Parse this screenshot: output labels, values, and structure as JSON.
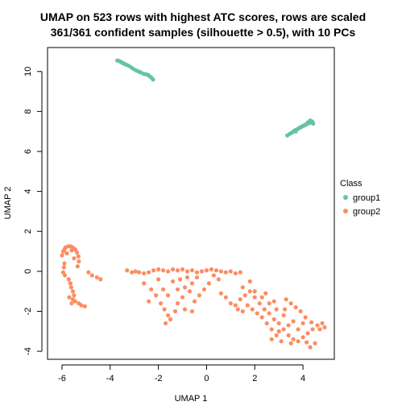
{
  "chart_data": {
    "type": "scatter",
    "title_line1": "UMAP on 523 rows with highest ATC scores, rows are scaled",
    "title_line2": "361/361 confident samples (silhouette > 0.5), with 10 PCs",
    "xlabel": "UMAP 1",
    "ylabel": "UMAP 2",
    "xlim": [
      -6.6,
      5.3
    ],
    "ylim": [
      -4.4,
      11.2
    ],
    "xticks": [
      -6,
      -4,
      -2,
      0,
      2,
      4
    ],
    "yticks": [
      -4,
      -2,
      0,
      2,
      4,
      6,
      8,
      10
    ],
    "grid": false,
    "legend": {
      "title": "Class",
      "position": "right",
      "entries": [
        "group1",
        "group2"
      ]
    },
    "colors": {
      "group1": "#66C2A5",
      "group2": "#FC8D62"
    },
    "series": [
      {
        "name": "group1",
        "color": "#66C2A5",
        "points": [
          [
            -3.7,
            10.55
          ],
          [
            -3.62,
            10.52
          ],
          [
            -3.55,
            10.48
          ],
          [
            -3.48,
            10.42
          ],
          [
            -3.4,
            10.38
          ],
          [
            -3.32,
            10.33
          ],
          [
            -3.22,
            10.28
          ],
          [
            -3.12,
            10.2
          ],
          [
            -3.02,
            10.12
          ],
          [
            -2.92,
            10.05
          ],
          [
            -2.82,
            10.0
          ],
          [
            -2.72,
            9.95
          ],
          [
            -2.6,
            9.88
          ],
          [
            -2.5,
            9.86
          ],
          [
            -2.42,
            9.82
          ],
          [
            -2.35,
            9.75
          ],
          [
            -2.28,
            9.68
          ],
          [
            -2.22,
            9.6
          ],
          [
            3.35,
            6.8
          ],
          [
            3.45,
            6.88
          ],
          [
            3.55,
            6.95
          ],
          [
            3.62,
            7.02
          ],
          [
            3.7,
            7.08
          ],
          [
            3.78,
            7.12
          ],
          [
            3.85,
            7.18
          ],
          [
            3.92,
            7.22
          ],
          [
            4.0,
            7.28
          ],
          [
            4.05,
            7.3
          ],
          [
            4.12,
            7.35
          ],
          [
            4.18,
            7.38
          ],
          [
            4.25,
            7.42
          ],
          [
            4.32,
            7.45
          ],
          [
            4.38,
            7.5
          ],
          [
            4.42,
            7.4
          ],
          [
            4.3,
            7.55
          ],
          [
            4.2,
            7.45
          ],
          [
            3.7,
            7.0
          ]
        ]
      },
      {
        "name": "group2",
        "color": "#FC8D62",
        "points": [
          [
            -6.0,
            0.8
          ],
          [
            -5.95,
            1.0
          ],
          [
            -5.9,
            1.1
          ],
          [
            -5.85,
            1.2
          ],
          [
            -5.75,
            1.25
          ],
          [
            -5.65,
            1.25
          ],
          [
            -5.55,
            1.2
          ],
          [
            -5.45,
            1.1
          ],
          [
            -5.38,
            0.95
          ],
          [
            -5.32,
            0.75
          ],
          [
            -5.3,
            0.5
          ],
          [
            -5.35,
            0.25
          ],
          [
            -5.9,
            0.4
          ],
          [
            -5.92,
            0.2
          ],
          [
            -5.95,
            -0.05
          ],
          [
            -5.88,
            -0.2
          ],
          [
            -5.72,
            -0.4
          ],
          [
            -5.62,
            -0.8
          ],
          [
            -5.55,
            -1.0
          ],
          [
            -5.5,
            -1.2
          ],
          [
            -5.55,
            -1.4
          ],
          [
            -5.6,
            -1.6
          ],
          [
            -5.45,
            -1.5
          ],
          [
            -5.3,
            -1.6
          ],
          [
            -5.2,
            -1.7
          ],
          [
            -5.05,
            -1.75
          ],
          [
            -5.7,
            -1.3
          ],
          [
            -5.65,
            -0.6
          ],
          [
            -4.9,
            -0.05
          ],
          [
            -4.75,
            -0.2
          ],
          [
            -4.55,
            -0.3
          ],
          [
            -4.4,
            -0.4
          ],
          [
            -5.8,
            0.9
          ],
          [
            -5.6,
            1.05
          ],
          [
            -5.5,
            0.65
          ],
          [
            -3.3,
            0.05
          ],
          [
            -3.1,
            -0.05
          ],
          [
            -2.95,
            0.0
          ],
          [
            -2.8,
            -0.05
          ],
          [
            -2.6,
            -0.1
          ],
          [
            -2.4,
            -0.05
          ],
          [
            -2.2,
            0.05
          ],
          [
            -2.0,
            0.1
          ],
          [
            -1.8,
            0.05
          ],
          [
            -1.6,
            0.0
          ],
          [
            -1.4,
            0.1
          ],
          [
            -1.2,
            0.05
          ],
          [
            -1.0,
            0.1
          ],
          [
            -0.8,
            0.0
          ],
          [
            -0.6,
            0.05
          ],
          [
            -0.4,
            -0.05
          ],
          [
            -0.2,
            0.0
          ],
          [
            0.0,
            0.05
          ],
          [
            0.2,
            0.1
          ],
          [
            0.4,
            0.05
          ],
          [
            0.6,
            0.0
          ],
          [
            0.8,
            -0.05
          ],
          [
            1.0,
            0.0
          ],
          [
            1.2,
            -0.1
          ],
          [
            1.4,
            -0.05
          ],
          [
            -2.6,
            -0.6
          ],
          [
            -2.3,
            -0.9
          ],
          [
            -2.1,
            -1.2
          ],
          [
            -1.9,
            -1.6
          ],
          [
            -1.75,
            -1.9
          ],
          [
            -1.6,
            -2.2
          ],
          [
            -1.5,
            -2.4
          ],
          [
            -1.7,
            -2.6
          ],
          [
            -1.3,
            -2.0
          ],
          [
            -1.2,
            -1.6
          ],
          [
            -1.0,
            -1.3
          ],
          [
            -0.9,
            -0.8
          ],
          [
            -0.7,
            -1.0
          ],
          [
            -0.5,
            -1.5
          ],
          [
            -0.3,
            -1.2
          ],
          [
            -0.1,
            -0.9
          ],
          [
            0.1,
            -0.6
          ],
          [
            -1.4,
            -0.5
          ],
          [
            -1.1,
            -0.4
          ],
          [
            -0.8,
            -0.3
          ],
          [
            -2.0,
            -0.4
          ],
          [
            -0.6,
            -0.6
          ],
          [
            -0.4,
            -0.3
          ],
          [
            -1.6,
            -1.2
          ],
          [
            -1.2,
            -0.9
          ],
          [
            -0.9,
            -1.9
          ],
          [
            -0.6,
            -2.0
          ],
          [
            0.3,
            -0.2
          ],
          [
            0.5,
            -0.4
          ],
          [
            -2.4,
            -1.5
          ],
          [
            -1.8,
            -0.9
          ],
          [
            0.6,
            -1.1
          ],
          [
            0.8,
            -1.3
          ],
          [
            1.0,
            -1.6
          ],
          [
            1.2,
            -1.7
          ],
          [
            1.4,
            -1.4
          ],
          [
            1.6,
            -1.2
          ],
          [
            1.8,
            -1.0
          ],
          [
            2.0,
            -1.3
          ],
          [
            2.2,
            -1.6
          ],
          [
            2.4,
            -1.9
          ],
          [
            2.6,
            -2.1
          ],
          [
            2.8,
            -2.4
          ],
          [
            3.0,
            -2.6
          ],
          [
            3.2,
            -2.9
          ],
          [
            3.4,
            -3.2
          ],
          [
            3.6,
            -3.4
          ],
          [
            3.8,
            -3.5
          ],
          [
            4.0,
            -3.3
          ],
          [
            4.2,
            -3.1
          ],
          [
            4.4,
            -2.9
          ],
          [
            4.6,
            -2.7
          ],
          [
            4.8,
            -2.6
          ],
          [
            4.9,
            -2.8
          ],
          [
            4.5,
            -3.6
          ],
          [
            4.3,
            -3.8
          ],
          [
            3.1,
            -3.5
          ],
          [
            2.9,
            -3.2
          ],
          [
            2.7,
            -2.9
          ],
          [
            2.5,
            -2.6
          ],
          [
            2.3,
            -2.3
          ],
          [
            2.1,
            -2.1
          ],
          [
            1.9,
            -1.9
          ],
          [
            1.7,
            -1.7
          ],
          [
            1.5,
            -2.0
          ],
          [
            1.3,
            -1.9
          ],
          [
            3.3,
            -1.4
          ],
          [
            3.5,
            -1.6
          ],
          [
            3.7,
            -1.8
          ],
          [
            3.9,
            -2.0
          ],
          [
            4.1,
            -2.3
          ],
          [
            3.6,
            -2.5
          ],
          [
            3.2,
            -2.2
          ],
          [
            2.9,
            -1.9
          ],
          [
            2.6,
            -1.6
          ],
          [
            2.3,
            -1.3
          ],
          [
            2.0,
            -1.0
          ],
          [
            1.5,
            -0.8
          ],
          [
            1.8,
            -0.5
          ],
          [
            3.4,
            -2.7
          ],
          [
            3.8,
            -2.9
          ],
          [
            4.0,
            -2.6
          ],
          [
            3.0,
            -3.0
          ],
          [
            2.7,
            -3.4
          ],
          [
            3.5,
            -3.6
          ],
          [
            4.15,
            -3.55
          ],
          [
            4.35,
            -2.55
          ],
          [
            4.7,
            -2.9
          ],
          [
            3.25,
            -1.9
          ],
          [
            2.45,
            -1.1
          ],
          [
            2.8,
            -1.5
          ]
        ]
      }
    ]
  }
}
